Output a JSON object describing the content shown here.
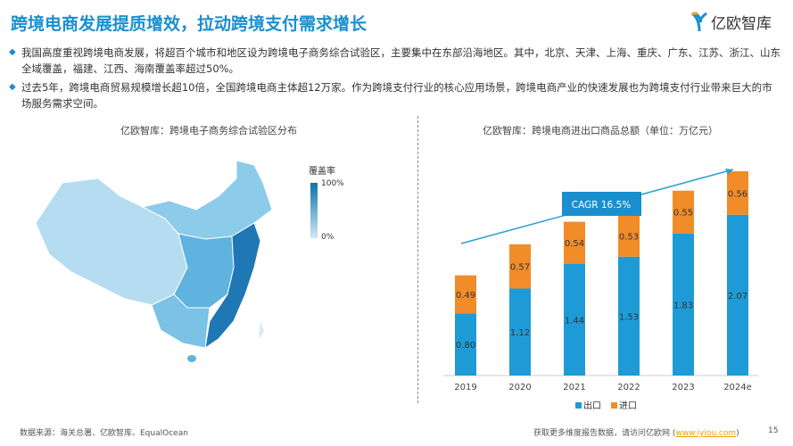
{
  "title": "跨境电商发展提质增效，拉动跨境支付需求增长",
  "logo": "亿欧智库",
  "bullets": [
    "我国高度重视跨境电商发展，将超百个城市和地区设为跨境电子商务综合试验区，主要集中在东部沿海地区。其中，北京、天津、上海、重庆、广东、江苏、浙江、山东全域覆盖，福建、江西、海南覆盖率超过50%。",
    "过去5年，跨境电商贸易规模增长超10倍，全国跨境电商主体超12万家。作为跨境支付行业的核心应用场景，跨境电商产业的快速发展也为跨境支付行业带来巨大的市场服务需求空间。"
  ],
  "map": {
    "subtitle": "亿欧智库：跨境电子商务综合试验区分布",
    "legend_title": "覆盖率",
    "legend_high": "100%",
    "legend_low": "0%"
  },
  "chart_data": {
    "type": "bar",
    "stacked": true,
    "title": "亿欧智库：跨境电商进出口商品总额（单位：万亿元）",
    "categories": [
      "2019",
      "2020",
      "2021",
      "2022",
      "2023",
      "2024e"
    ],
    "series": [
      {
        "name": "出口",
        "color": "#1e9bd7",
        "values": [
          0.8,
          1.12,
          1.44,
          1.53,
          1.83,
          2.07
        ]
      },
      {
        "name": "进口",
        "color": "#f28c28",
        "values": [
          0.49,
          0.57,
          0.54,
          0.53,
          0.55,
          0.56
        ]
      }
    ],
    "annotation": "CAGR 16.5%",
    "legend": "bottom",
    "ylim": [
      0,
      2.63
    ]
  },
  "footer": {
    "source": "数据来源：海关总署、亿欧智库、EqualOcean",
    "more": "获取更多维度报告数据，请访问亿欧网 (",
    "link": "www.iyiou.com",
    "close": ")",
    "page": "15"
  }
}
